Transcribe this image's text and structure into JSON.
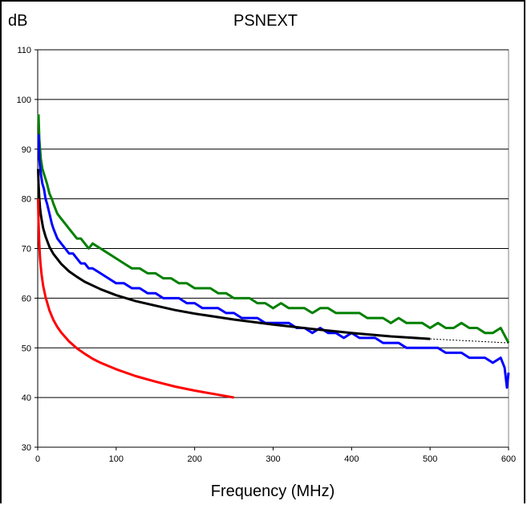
{
  "chart_data": {
    "type": "line",
    "title": "PSNEXT",
    "ylabel": "dB",
    "xlabel": "Frequency (MHz)",
    "xlim": [
      0,
      600
    ],
    "ylim": [
      30,
      110
    ],
    "xticks": [
      0,
      100,
      200,
      300,
      400,
      500,
      600
    ],
    "yticks": [
      30,
      40,
      50,
      60,
      70,
      80,
      90,
      100,
      110
    ],
    "grid": "horizontal",
    "plot_background": "#ffffff",
    "series": [
      {
        "color": "#008000",
        "x": [
          1,
          2,
          4,
          6,
          8,
          10,
          12,
          15,
          18,
          20,
          25,
          30,
          35,
          40,
          45,
          50,
          55,
          60,
          65,
          70,
          80,
          90,
          100,
          110,
          120,
          130,
          140,
          150,
          160,
          170,
          180,
          190,
          200,
          210,
          220,
          230,
          240,
          250,
          260,
          270,
          280,
          290,
          300,
          310,
          320,
          330,
          340,
          350,
          360,
          370,
          380,
          390,
          400,
          410,
          420,
          430,
          440,
          450,
          460,
          470,
          480,
          490,
          500,
          510,
          520,
          530,
          540,
          550,
          560,
          570,
          580,
          590,
          600
        ],
        "y": [
          97,
          92,
          88,
          86,
          85,
          84,
          83,
          81,
          80,
          79,
          77,
          76,
          75,
          74,
          73,
          72,
          72,
          71,
          70,
          71,
          70,
          69,
          68,
          67,
          66,
          66,
          65,
          65,
          64,
          64,
          63,
          63,
          62,
          62,
          62,
          61,
          61,
          60,
          60,
          60,
          59,
          59,
          58,
          59,
          58,
          58,
          58,
          57,
          58,
          58,
          57,
          57,
          57,
          57,
          56,
          56,
          56,
          55,
          56,
          55,
          55,
          55,
          54,
          55,
          54,
          54,
          55,
          54,
          54,
          53,
          53,
          54,
          51
        ]
      },
      {
        "color": "#0000ff",
        "x": [
          1,
          2,
          4,
          6,
          8,
          10,
          12,
          15,
          18,
          20,
          25,
          30,
          35,
          40,
          45,
          50,
          55,
          60,
          65,
          70,
          80,
          90,
          100,
          110,
          120,
          130,
          140,
          150,
          160,
          170,
          180,
          190,
          200,
          210,
          220,
          230,
          240,
          250,
          260,
          270,
          280,
          290,
          300,
          310,
          320,
          330,
          340,
          350,
          360,
          370,
          380,
          390,
          400,
          410,
          420,
          430,
          440,
          450,
          460,
          470,
          480,
          490,
          500,
          510,
          520,
          530,
          540,
          550,
          560,
          570,
          580,
          590,
          595,
          598,
          600
        ],
        "y": [
          93,
          88,
          85,
          83,
          82,
          80,
          79,
          77,
          75,
          74,
          72,
          71,
          70,
          69,
          69,
          68,
          67,
          67,
          66,
          66,
          65,
          64,
          63,
          63,
          62,
          62,
          61,
          61,
          60,
          60,
          60,
          59,
          59,
          58,
          58,
          58,
          57,
          57,
          56,
          56,
          56,
          55,
          55,
          55,
          55,
          54,
          54,
          53,
          54,
          53,
          53,
          52,
          53,
          52,
          52,
          52,
          51,
          51,
          51,
          50,
          50,
          50,
          50,
          50,
          49,
          49,
          49,
          48,
          48,
          48,
          47,
          48,
          46,
          42,
          45
        ]
      },
      {
        "color": "#000000",
        "x": [
          0.5,
          1,
          2,
          3,
          4,
          5,
          7,
          10,
          15,
          20,
          30,
          40,
          50,
          60,
          80,
          100,
          125,
          150,
          175,
          200,
          250,
          300,
          350,
          400,
          450,
          500
        ],
        "y": [
          86,
          83.2,
          80,
          78.2,
          76.8,
          75.8,
          74.1,
          72.4,
          70.3,
          68.9,
          66.9,
          65.4,
          64.3,
          63.3,
          61.8,
          60.6,
          59.4,
          58.5,
          57.6,
          56.9,
          55.7,
          54.7,
          53.8,
          53.0,
          52.3,
          51.8
        ]
      },
      {
        "color": "#000000",
        "dashed": true,
        "x": [
          500,
          600
        ],
        "y": [
          51.8,
          51.0
        ]
      },
      {
        "color": "#ff0000",
        "x": [
          0.5,
          1,
          2,
          3,
          4,
          5,
          7,
          10,
          15,
          20,
          25,
          30,
          40,
          50,
          60,
          70,
          80,
          100,
          125,
          150,
          175,
          200,
          225,
          250
        ],
        "y": [
          80,
          75.5,
          70.8,
          68.1,
          66.2,
          64.7,
          62.5,
          60.2,
          57.5,
          55.6,
          54.2,
          53.1,
          51.3,
          49.9,
          48.8,
          47.8,
          47.0,
          45.7,
          44.3,
          43.2,
          42.2,
          41.4,
          40.7,
          40.0
        ]
      }
    ]
  }
}
